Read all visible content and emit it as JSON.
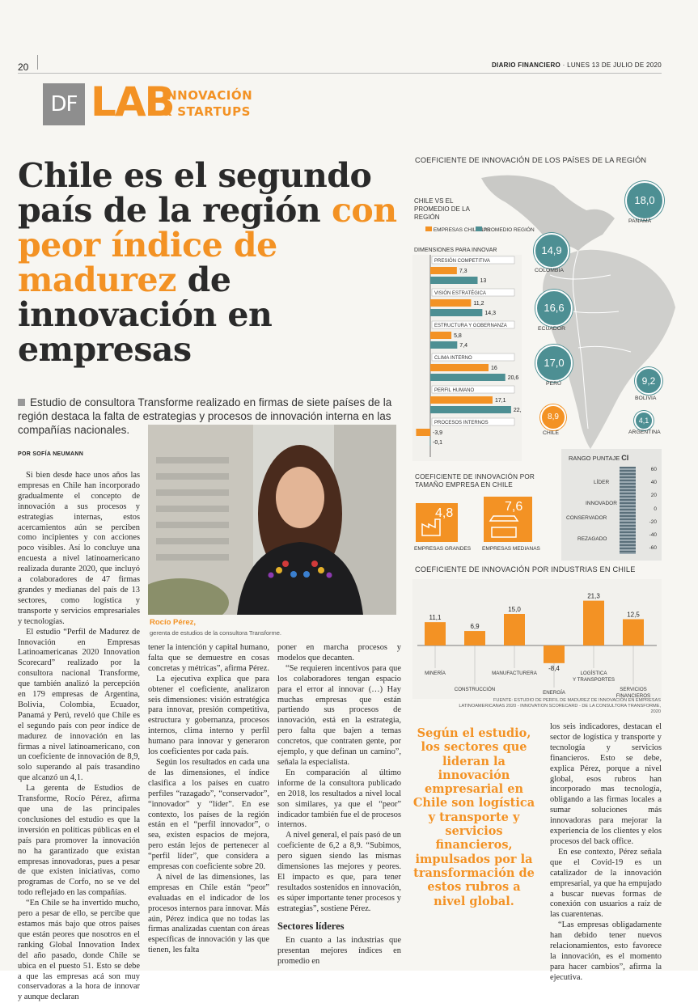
{
  "header": {
    "page_number": "20",
    "paper": "DIARIO FINANCIERO",
    "date": "LUNES 13 DE JULIO DE 2020"
  },
  "brand": {
    "df": "DF",
    "lab": "LAB",
    "line1": "INNOVACIÓN",
    "line2": "& STARTUPS",
    "accent_color": "#f39224",
    "teal_color": "#4d8f93"
  },
  "headline": {
    "part1": "Chile es el segundo país de la región ",
    "part2": "con peor índice de madurez",
    "part3": " de innovación en empresas"
  },
  "deck": "Estudio de consultora Transforme realizado en firmas de siete países de la región destaca la falta de estrategias y procesos de innovación interna en las compañías nacionales.",
  "byline": "POR SOFÍA NEUMANN",
  "photo": {
    "caption_name": "Rocío Pérez,",
    "caption_role": "gerenta de estudios de la consultora Transforme."
  },
  "col1": [
    "Si bien desde hace unos años las empresas en Chile han incorporado gradualmente el concepto de innovación a sus procesos y estrategias internas, estos acercamientos aún se perciben como incipientes y con acciones poco visibles. Así lo concluye una encuesta a nivel latinoamericano realizada durante 2020, que incluyó a colaboradores de 47 firmas grandes y medianas del país de 13 sectores, como logística y transporte y servicios empresariales y tecnologías.",
    "El estudio “Perfil de Madurez de Innovación en Empresas Latinoamericanas 2020 Innovation Scorecard” realizado por la consultora nacional Transforme, que también analizó la percepción en 179 empresas de Argentina, Bolivia, Colombia, Ecuador, Panamá y Perú, reveló que Chile es el segundo país con peor índice de madurez de innovación en las firmas a nivel latinoamericano, con un coeficiente de innovación de 8,9, solo superando al país trasandino que alcanzó un 4,1.",
    "La gerenta de Estudios de Transforme, Rocío Pérez, afirma que una de las principales conclusiones del estudio es que la inversión en políticas públicas en el país para promover la innovación no ha garantizado que existan empresas innovadoras, pues a pesar de que existen iniciativas, como programas de Corfo, no se ve del todo reflejado en las compañías.",
    "“En Chile se ha invertido mucho, pero a pesar de ello, se percibe que estamos más bajo que otros países que están peores que nosotros en el ranking Global Innovation Index del año pasado, donde Chile se ubica en el puesto 51. Esto se debe a que las empresas acá son muy conservadoras a la hora de innovar y aunque declaran"
  ],
  "col2": [
    "tener la intención y capital humano, falta que se demuestre en cosas concretas y métricas”, afirma Pérez.",
    "La ejecutiva explica que para obtener el coeficiente, analizaron seis dimensiones: visión estratégica para innovar, presión competitiva, estructura y gobernanza, procesos internos, clima interno y perfil humano para innovar y generaron los coeficientes por cada país.",
    "Según los resultados en cada una de las dimensiones, el índice clasifica a los países en cuatro perfiles “razagado”, “conservador”, “innovador” y “líder”. En ese contexto, los países de la región están en el “perfil innovador”, o sea, existen espacios de mejora, pero están lejos de pertenecer al “perfil líder”, que considera a empresas con coeficiente sobre 20.",
    "A nivel de las dimensiones, las empresas en Chile están “peor” evaluadas en el indicador de los procesos internos para innovar. Más aún, Pérez indica que no todas las firmas analizadas cuentan con áreas específicas de innovación y las que tienen, les falta"
  ],
  "col3": [
    "poner en marcha procesos y modelos que decanten.",
    "“Se requieren incentivos para que los colaboradores tengan espacio para el error al innovar (…) Hay muchas empresas que están partiendo sus procesos de innovación, está en la estrategia, pero falta que bajen a temas concretos, que contraten gente, por ejemplo, y que definan un camino”, señala la especialista.",
    "En comparación al último informe de la consultora publicado en 2018, los resultados a nivel local son similares, ya que el “peor” indicador también fue el de procesos internos.",
    "A nivel general, el país pasó de un coeficiente de 6,2 a 8,9. “Subimos, pero siguen siendo las mismas dimensiones las mejores y peores. El impacto es que, para tener resultados sostenidos en innovación, es súper importante tener procesos y estrategias”, sostiene Pérez."
  ],
  "col3_heading": "Sectores líderes",
  "col3_after": "En cuanto a las industrias que presentan mejores índices en promedio en",
  "pullquote": "Según el estudio, los sectores que lideran la innovación empresarial en Chile son logística y transporte y servicios financieros, impulsados por la transformación de estos rubros a nivel global.",
  "col5": [
    "los seis indicadores, destacan el sector de logística y transporte y tecnología y servicios financieros. Esto se debe, explica Pérez, porque a nivel global, esos rubros han incorporado mas tecnología, obligando a las firmas locales a sumar soluciones más innovadoras para mejorar la experiencia de los clientes y elos procesos del back office.",
    "En ese contexto, Pérez señala que el Covid-19 es un catalizador de la innovación empresarial, ya que ha empujado a buscar nuevas formas de conexión con usuarios a raíz de las cuarentenas.",
    "“Las empresas obligadamente han debido tener nuevos relacionamientos, esto favorece la innovación, es el momento para hacer cambios”, afirma la ejecutiva."
  ],
  "infographic": {
    "title_region": "COEFICIENTE DE INNOVACIÓN DE LOS PAÍSES DE LA REGIÓN",
    "countries": [
      {
        "name": "PANAMÁ",
        "value": "18,0"
      },
      {
        "name": "COLOMBIA",
        "value": "14,9"
      },
      {
        "name": "ECUADOR",
        "value": "16,6"
      },
      {
        "name": "PERÚ",
        "value": "17,0"
      },
      {
        "name": "BOLIVIA",
        "value": "9,2"
      },
      {
        "name": "CHILE",
        "value": "8,9"
      },
      {
        "name": "ARGENTINA",
        "value": "4,1"
      }
    ],
    "size_title": "COEFICIENTE DE INNOVACIÓN POR TAMAÑO EMPRESA EN CHILE",
    "sizes": [
      {
        "label": "EMPRESAS GRANDES",
        "value": "4,8"
      },
      {
        "label": "EMPRESAS MEDIANAS",
        "value": "7,6"
      }
    ],
    "scale_title": "RANGO PUNTAJE",
    "scale_ci": "CI",
    "scale_labels": [
      "LÍDER",
      "INNOVADOR",
      "CONSERVADOR",
      "REZAGADO"
    ],
    "scale_ticks": [
      "60",
      "40",
      "20",
      "0",
      "-20",
      "-40",
      "-60"
    ],
    "source": "FUENTE: ESTUDIO DE PERFIL DE MADUREZ DE INNOVACIÓN EN EMPRESAS LATINOAMERICANAS 2020 - INNOVATION SCORECARD - DE LA CONSULTORA TRANSFORME, 2020"
  },
  "chart_data": [
    {
      "type": "bar",
      "title": "CHILE VS EL PROMEDIO DE LA REGIÓN",
      "subtitle": "DIMENSIONES PARA INNOVAR",
      "orientation": "horizontal",
      "categories": [
        "PRESIÓN COMPETITIVA",
        "VISIÓN ESTRATÉGICA",
        "ESTRUCTURA Y GOBERNANZA",
        "CLIMA INTERNO",
        "PERFIL HUMANO",
        "PROCESOS INTERNOS"
      ],
      "series": [
        {
          "name": "EMPRESAS CHILENAS",
          "color": "#f39224",
          "values": [
            7.3,
            11.2,
            5.8,
            16,
            17.1,
            -3.9
          ],
          "labels": [
            "7,3",
            "11,2",
            "5,8",
            "16",
            "17,1",
            "-3,9"
          ]
        },
        {
          "name": "PROMEDIO REGIÓN",
          "color": "#4d8f93",
          "values": [
            13,
            14.3,
            7.4,
            20.6,
            22.2,
            -0.1
          ],
          "labels": [
            "13",
            "14,3",
            "7,4",
            "20,6",
            "22,2",
            "-0,1"
          ]
        }
      ],
      "xlim": [
        -5,
        25
      ]
    },
    {
      "type": "bar",
      "title": "COEFICIENTE DE INNOVACIÓN POR INDUSTRIAS EN CHILE",
      "categories": [
        "MINERÍA",
        "CONSTRUCCIÓN",
        "MANUFACTURERA",
        "ENERGÍA",
        "LOGÍSTICA Y TRANSPORTES",
        "SERVICIOS FINANCIEROS"
      ],
      "values": [
        11.1,
        6.9,
        15.0,
        -8.4,
        21.3,
        12.5
      ],
      "labels": [
        "11,1",
        "6,9",
        "15,0",
        "-8,4",
        "21,3",
        "12,5"
      ],
      "color": "#f39224",
      "ylim": [
        -10,
        25
      ]
    }
  ]
}
